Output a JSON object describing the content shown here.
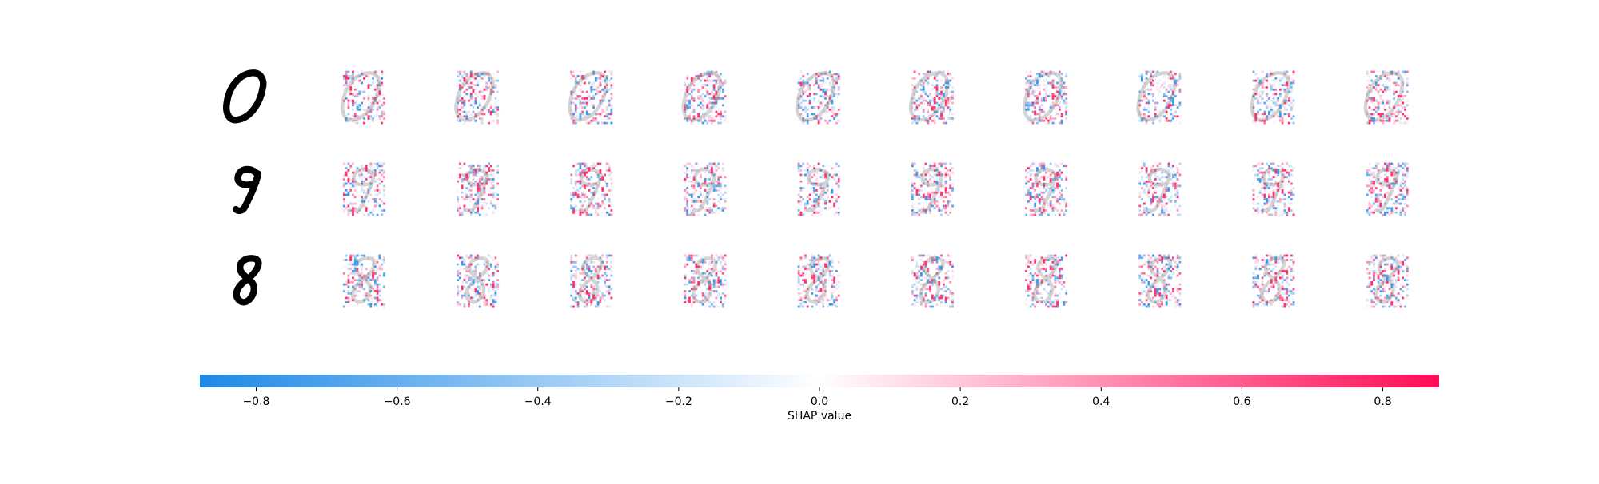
{
  "chart_data": {
    "type": "heatmap",
    "title": "",
    "rows": [
      {
        "input_digit": "0",
        "panels": 10
      },
      {
        "input_digit": "9",
        "panels": 10
      },
      {
        "input_digit": "8",
        "panels": 10
      }
    ],
    "columns_per_row": 10,
    "colorbar": {
      "label": "SHAP value",
      "range": [
        -0.88,
        0.88
      ],
      "ticks": [
        -0.8,
        -0.6,
        -0.4,
        -0.2,
        0.0,
        0.2,
        0.4,
        0.6,
        0.8
      ],
      "tick_labels": [
        "−0.8",
        "−0.6",
        "−0.4",
        "−0.2",
        "0.0",
        "0.2",
        "0.4",
        "0.6",
        "0.8"
      ],
      "colors": {
        "negative": "#1e88e5",
        "zero": "#ffffff",
        "positive": "#ff0d57"
      }
    },
    "grid": false
  }
}
